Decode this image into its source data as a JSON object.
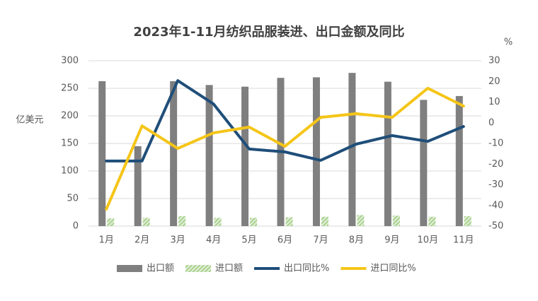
{
  "chart_data": {
    "type": "bar-line",
    "title": "2023年1-11月纺织品服装进、出口金额及同比",
    "y_label": "亿美元",
    "y2_label": "%",
    "categories": [
      "1月",
      "2月",
      "3月",
      "4月",
      "5月",
      "6月",
      "7月",
      "8月",
      "9月",
      "10月",
      "11月"
    ],
    "series": [
      {
        "name": "出口额",
        "type": "bar",
        "color": "#7f7f7f",
        "values": [
          263,
          145,
          263,
          256,
          253,
          269,
          270,
          278,
          262,
          229,
          236
        ]
      },
      {
        "name": "进口额",
        "type": "bar",
        "color": "#a9d18e",
        "values": [
          14,
          15,
          18,
          15,
          15,
          16,
          17,
          20,
          19,
          17,
          18
        ]
      },
      {
        "name": "出口同比%",
        "type": "line",
        "axis": "y2",
        "color": "#1f4e79",
        "values": [
          -18.5,
          -18.5,
          20.4,
          9.1,
          -12.7,
          -14.1,
          -18.2,
          -10.3,
          -6.2,
          -9.0,
          -1.8
        ]
      },
      {
        "name": "进口同比%",
        "type": "line",
        "axis": "y2",
        "color": "#f5c518",
        "values": [
          -41.8,
          -1.5,
          -12.4,
          -4.9,
          -2.1,
          -11.4,
          2.6,
          4.4,
          2.6,
          16.7,
          8.1
        ]
      }
    ],
    "ylim": [
      0,
      300
    ],
    "yticks": [
      0,
      50,
      100,
      150,
      200,
      250,
      300
    ],
    "y2lim": [
      -50,
      30
    ],
    "y2ticks": [
      -50,
      -40,
      -30,
      -20,
      -10,
      0,
      10,
      20,
      30
    ],
    "grid": true
  }
}
